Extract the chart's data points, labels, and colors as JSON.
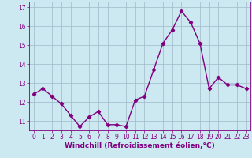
{
  "x": [
    0,
    1,
    2,
    3,
    4,
    5,
    6,
    7,
    8,
    9,
    10,
    11,
    12,
    13,
    14,
    15,
    16,
    17,
    18,
    19,
    20,
    21,
    22,
    23
  ],
  "y": [
    12.4,
    12.7,
    12.3,
    11.9,
    11.3,
    10.7,
    11.2,
    11.5,
    10.8,
    10.8,
    10.7,
    12.1,
    12.3,
    13.7,
    15.1,
    15.8,
    16.8,
    16.2,
    15.1,
    12.7,
    13.3,
    12.9,
    12.9,
    12.7
  ],
  "line_color": "#800080",
  "marker": "D",
  "marker_size": 2.2,
  "line_width": 1.0,
  "bg_color": "#cce8f0",
  "grid_color": "#a0b8c8",
  "xlabel": "Windchill (Refroidissement éolien,°C)",
  "xlabel_color": "#800080",
  "tick_color": "#800080",
  "ylim": [
    10.5,
    17.3
  ],
  "xlim": [
    -0.5,
    23.5
  ],
  "yticks": [
    11,
    12,
    13,
    14,
    15,
    16,
    17
  ],
  "xticks": [
    0,
    1,
    2,
    3,
    4,
    5,
    6,
    7,
    8,
    9,
    10,
    11,
    12,
    13,
    14,
    15,
    16,
    17,
    18,
    19,
    20,
    21,
    22,
    23
  ],
  "tick_fontsize": 5.5,
  "xlabel_fontsize": 6.5
}
